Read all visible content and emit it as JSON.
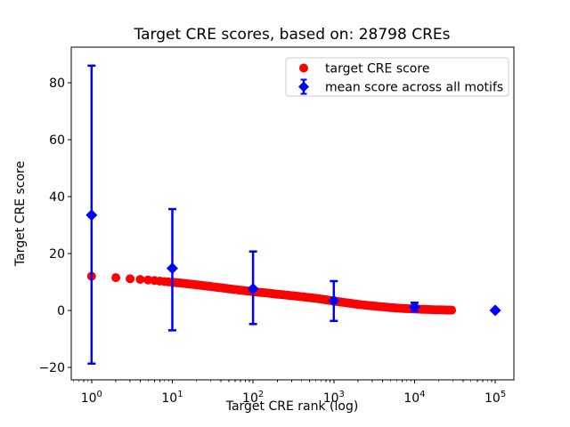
{
  "chart_data": {
    "type": "scatter",
    "title": "Target CRE scores, based on: 28798 CREs",
    "xlabel": "Target CRE rank (log)",
    "ylabel": "Target CRE score",
    "x_scale": "log",
    "y_scale": "linear",
    "xlim": [
      0.56,
      170000
    ],
    "ylim": [
      -24.4,
      92.5
    ],
    "grid": false,
    "x_ticks": [
      {
        "value": 1,
        "base": "10",
        "exp": "0"
      },
      {
        "value": 10,
        "base": "10",
        "exp": "1"
      },
      {
        "value": 100,
        "base": "10",
        "exp": "2"
      },
      {
        "value": 1000,
        "base": "10",
        "exp": "3"
      },
      {
        "value": 10000,
        "base": "10",
        "exp": "4"
      },
      {
        "value": 100000,
        "base": "10",
        "exp": "5"
      }
    ],
    "y_ticks": [
      {
        "value": -20,
        "label": "−20"
      },
      {
        "value": 0,
        "label": "0"
      },
      {
        "value": 20,
        "label": "20"
      },
      {
        "value": 40,
        "label": "40"
      },
      {
        "value": 60,
        "label": "60"
      },
      {
        "value": 80,
        "label": "80"
      }
    ],
    "series": [
      {
        "name": "target CRE score",
        "type": "scatter",
        "marker": "circle",
        "color": "#ff0000",
        "marker_radius_px": 5,
        "n_points_depicted": 28798,
        "rank_range": [
          1,
          28798
        ],
        "curve_anchors": [
          [
            1,
            12.0
          ],
          [
            2,
            11.5
          ],
          [
            3,
            11.1
          ],
          [
            4,
            10.9
          ],
          [
            5,
            10.7
          ],
          [
            7,
            10.3
          ],
          [
            10,
            9.9
          ],
          [
            15,
            9.4
          ],
          [
            20,
            9.0
          ],
          [
            30,
            8.4
          ],
          [
            50,
            7.6
          ],
          [
            70,
            7.1
          ],
          [
            100,
            6.6
          ],
          [
            150,
            6.1
          ],
          [
            200,
            5.7
          ],
          [
            300,
            5.2
          ],
          [
            500,
            4.5
          ],
          [
            700,
            4.0
          ],
          [
            1000,
            3.3
          ],
          [
            1500,
            2.6
          ],
          [
            2000,
            2.1
          ],
          [
            3000,
            1.6
          ],
          [
            5000,
            1.0
          ],
          [
            7000,
            0.7
          ],
          [
            10000,
            0.5
          ],
          [
            15000,
            0.3
          ],
          [
            20000,
            0.2
          ],
          [
            28798,
            0.1
          ]
        ]
      },
      {
        "name": "mean score across all motifs",
        "type": "errorbar",
        "marker": "diamond",
        "color": "#0000ff",
        "points": [
          {
            "x": 1,
            "y": 33.5,
            "low": -18.7,
            "high": 86.0
          },
          {
            "x": 10,
            "y": 14.8,
            "low": -7.0,
            "high": 35.6
          },
          {
            "x": 100,
            "y": 7.6,
            "low": -4.8,
            "high": 20.7
          },
          {
            "x": 1000,
            "y": 3.4,
            "low": -3.7,
            "high": 10.3
          },
          {
            "x": 10000,
            "y": 1.2,
            "low": -0.3,
            "high": 2.7
          },
          {
            "x": 100000,
            "y": 0.0,
            "low": -0.3,
            "high": 0.3
          }
        ]
      }
    ],
    "legend": {
      "position": "upper right",
      "entries": [
        {
          "label": "target CRE score"
        },
        {
          "label": "mean score across all motifs"
        }
      ]
    },
    "colors": {
      "background": "#ffffff",
      "spine": "#000000",
      "text": "#000000",
      "legend_border": "#cccccc",
      "red_series": "#ff0000",
      "blue_series": "#0000ff"
    }
  }
}
